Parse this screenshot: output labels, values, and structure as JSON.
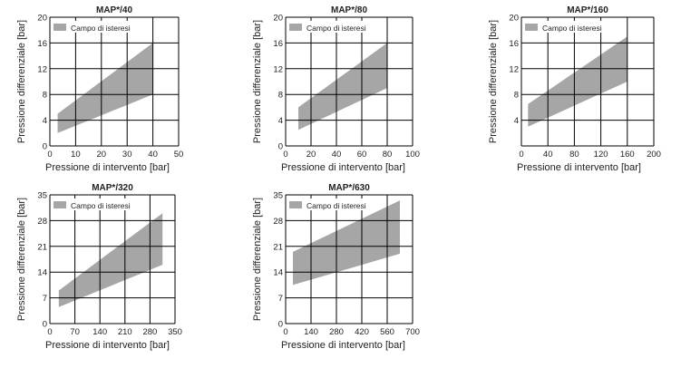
{
  "style": {
    "band_color": "#a6a6a6",
    "grid_color": "#000000"
  },
  "chart_data": [
    {
      "type": "area",
      "title": "MAP*/40",
      "xlabel": "Pressione di intervento [bar]",
      "ylabel": "Pressione differenziale [bar]",
      "xlim": [
        0,
        50
      ],
      "ylim": [
        0,
        20
      ],
      "xticks": [
        0,
        10,
        20,
        30,
        40,
        50
      ],
      "yticks": [
        0,
        4,
        8,
        12,
        16,
        20
      ],
      "grid": true,
      "legend": {
        "label": "Campo di isteresi",
        "position": "top-left"
      },
      "series": [
        {
          "x": [
            3,
            40
          ],
          "upper": [
            5,
            16
          ],
          "lower": [
            2,
            8
          ]
        }
      ]
    },
    {
      "type": "area",
      "title": "MAP*/80",
      "xlabel": "Pressione di intervento [bar]",
      "ylabel": "Pressione differenziale [bar]",
      "xlim": [
        0,
        100
      ],
      "ylim": [
        0,
        20
      ],
      "xticks": [
        0,
        20,
        40,
        60,
        80,
        100
      ],
      "yticks": [
        0,
        4,
        8,
        12,
        16,
        20
      ],
      "grid": true,
      "legend": {
        "label": "Campo di isteresi",
        "position": "top-left"
      },
      "series": [
        {
          "x": [
            10,
            80
          ],
          "upper": [
            6,
            16
          ],
          "lower": [
            2.5,
            9
          ]
        }
      ]
    },
    {
      "type": "area",
      "title": "MAP*/160",
      "xlabel": "Pressione di intervento [bar]",
      "ylabel": "Pressione differenziale [bar]",
      "xlim": [
        0,
        200
      ],
      "ylim": [
        0,
        20
      ],
      "xticks": [
        0,
        40,
        80,
        120,
        160,
        200
      ],
      "ytick_labels_shown": [
        4,
        8,
        12,
        16,
        20
      ],
      "yticks": [
        0,
        4,
        8,
        12,
        16,
        20
      ],
      "grid": true,
      "legend": {
        "label": "Campo di isteresi",
        "position": "top-left"
      },
      "series": [
        {
          "x": [
            10,
            160
          ],
          "upper": [
            6.5,
            17
          ],
          "lower": [
            3,
            10
          ]
        }
      ]
    },
    {
      "type": "area",
      "title": "MAP*/320",
      "xlabel": "Pressione di intervento [bar]",
      "ylabel": "Pressione differenziale [bar]",
      "xlim": [
        0,
        350
      ],
      "ylim": [
        0,
        35
      ],
      "xticks": [
        0,
        70,
        140,
        210,
        280,
        350
      ],
      "yticks": [
        0,
        7,
        14,
        21,
        28,
        35
      ],
      "grid": true,
      "legend": {
        "label": "Campo di isteresi",
        "position": "top-left"
      },
      "series": [
        {
          "x": [
            25,
            315
          ],
          "upper": [
            9,
            30
          ],
          "lower": [
            4.5,
            16
          ]
        }
      ]
    },
    {
      "type": "area",
      "title": "MAP*/630",
      "xlabel": "Pressione di intervento [bar]",
      "ylabel": "Pressione differenziale [bar]",
      "xlim": [
        0,
        700
      ],
      "ylim": [
        0,
        35
      ],
      "xticks": [
        0,
        140,
        280,
        420,
        560,
        700
      ],
      "yticks": [
        0,
        7,
        14,
        21,
        28,
        35
      ],
      "grid": true,
      "legend": {
        "label": "Campo di isteresi",
        "position": "top-left"
      },
      "series": [
        {
          "x": [
            40,
            630
          ],
          "upper": [
            19.5,
            33.5
          ],
          "lower": [
            10.5,
            19
          ]
        }
      ]
    }
  ]
}
